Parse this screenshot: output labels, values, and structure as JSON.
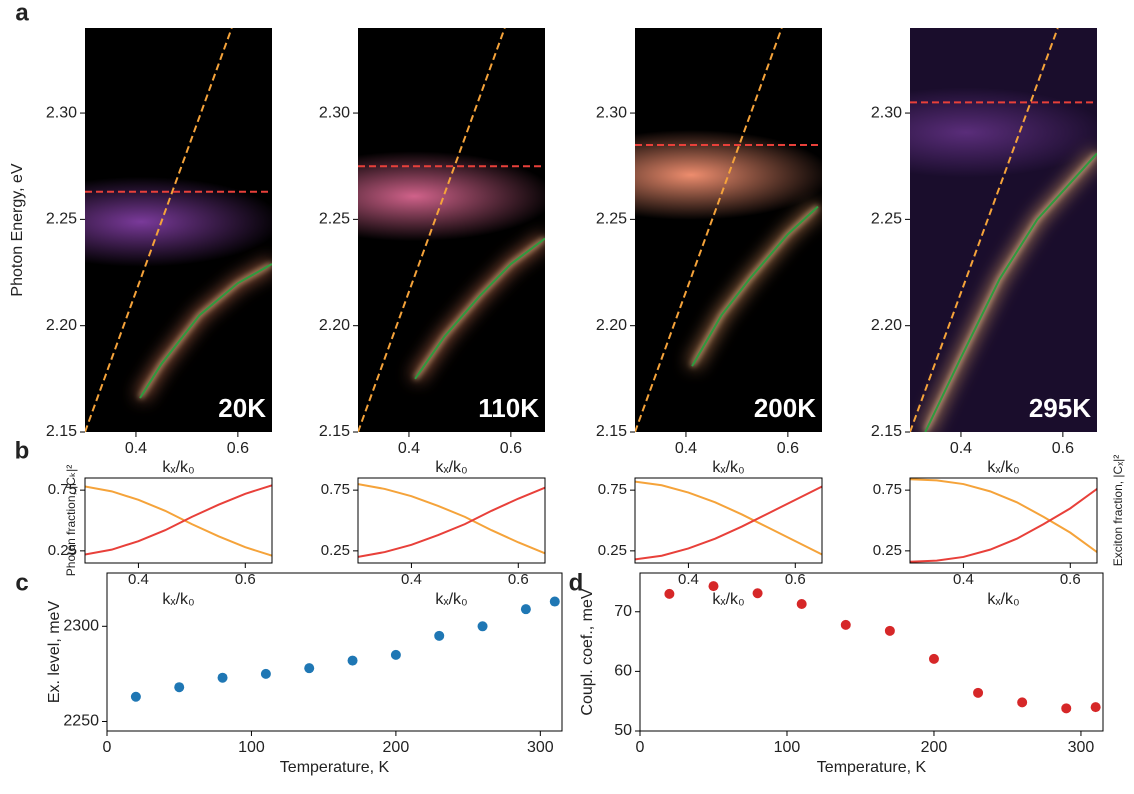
{
  "chart_data": [
    {
      "panel": "a",
      "type": "line",
      "ylabel": "Photon Energy, eV",
      "xlabel": "kₓ/k₀",
      "annotation": "20K",
      "xlim": [
        0.3,
        0.667
      ],
      "ylim": [
        2.15,
        2.34
      ],
      "xticks": [
        0.4,
        0.6
      ],
      "yticks": [
        2.15,
        {
          "value": 2.2,
          "label": "2.20"
        },
        2.25,
        {
          "value": 2.3,
          "label": "2.30"
        }
      ],
      "series": [
        {
          "color": "#f5a33a",
          "dashed": true,
          "x": [
            0.3,
            0.588
          ],
          "values": [
            2.15,
            2.34
          ]
        },
        {
          "color": "#e8403a",
          "dashed": true,
          "x": [
            0.3,
            0.667
          ],
          "values": [
            2.263,
            2.263
          ]
        },
        {
          "color": "#2e9b3e",
          "x": [
            0.408,
            0.45,
            0.525,
            0.6,
            0.667
          ],
          "values": [
            2.166,
            2.182,
            2.205,
            2.22,
            2.229
          ]
        }
      ]
    },
    {
      "type": "line",
      "xlabel": "kₓ/k₀",
      "annotation": "110K",
      "xlim": [
        0.3,
        0.667
      ],
      "ylim": [
        2.15,
        2.34
      ],
      "xticks": [
        0.4,
        0.6
      ],
      "yticks": [
        2.15,
        {
          "value": 2.2,
          "label": "2.20"
        },
        2.25,
        {
          "value": 2.3,
          "label": "2.30"
        }
      ],
      "series": [
        {
          "color": "#f5a33a",
          "dashed": true,
          "x": [
            0.3,
            0.588
          ],
          "values": [
            2.15,
            2.34
          ]
        },
        {
          "color": "#e8403a",
          "dashed": true,
          "x": [
            0.3,
            0.667
          ],
          "values": [
            2.275,
            2.275
          ]
        },
        {
          "color": "#2e9b3e",
          "x": [
            0.412,
            0.47,
            0.539,
            0.6,
            0.667
          ],
          "values": [
            2.175,
            2.195,
            2.214,
            2.229,
            2.241
          ]
        }
      ]
    },
    {
      "type": "line",
      "xlabel": "kₓ/k₀",
      "annotation": "200K",
      "xlim": [
        0.3,
        0.667
      ],
      "ylim": [
        2.15,
        2.34
      ],
      "xticks": [
        0.4,
        0.6
      ],
      "yticks": [
        2.15,
        {
          "value": 2.2,
          "label": "2.20"
        },
        2.25,
        {
          "value": 2.3,
          "label": "2.30"
        }
      ],
      "series": [
        {
          "color": "#f5a33a",
          "dashed": true,
          "x": [
            0.3,
            0.588
          ],
          "values": [
            2.15,
            2.34
          ]
        },
        {
          "color": "#e8403a",
          "dashed": true,
          "x": [
            0.3,
            0.667
          ],
          "values": [
            2.285,
            2.285
          ]
        },
        {
          "color": "#2e9b3e",
          "x": [
            0.412,
            0.47,
            0.525,
            0.6,
            0.659
          ],
          "values": [
            2.181,
            2.205,
            2.222,
            2.243,
            2.256
          ]
        }
      ]
    },
    {
      "type": "line",
      "xlabel": "kₓ/k₀",
      "annotation": "295K",
      "xlim": [
        0.3,
        0.667
      ],
      "ylim": [
        2.15,
        2.34
      ],
      "xticks": [
        0.4,
        0.6
      ],
      "yticks": [
        2.15,
        {
          "value": 2.2,
          "label": "2.20"
        },
        2.25,
        {
          "value": 2.3,
          "label": "2.30"
        }
      ],
      "series": [
        {
          "color": "#f5a33a",
          "dashed": true,
          "x": [
            0.3,
            0.59
          ],
          "values": [
            2.15,
            2.34
          ]
        },
        {
          "color": "#e8403a",
          "dashed": true,
          "x": [
            0.3,
            0.667
          ],
          "values": [
            2.305,
            2.305
          ]
        },
        {
          "color": "#2e9b3e",
          "x": [
            0.33,
            0.4,
            0.476,
            0.55,
            0.667
          ],
          "values": [
            2.15,
            2.185,
            2.222,
            2.25,
            2.281
          ]
        }
      ]
    },
    {
      "panel": "b",
      "type": "line",
      "xlabel": "kₓ/k₀",
      "ylabel": "Photon fraction, |Cₖ|²",
      "xlim": [
        0.3,
        0.65
      ],
      "ylim": [
        0.15,
        0.85
      ],
      "xticks": [
        0.4,
        0.6
      ],
      "yticks": [
        0.25,
        0.75
      ],
      "series": [
        {
          "color": "#f5a33a",
          "x": [
            0.3,
            0.35,
            0.4,
            0.45,
            0.5,
            0.55,
            0.6,
            0.65
          ],
          "values": [
            0.78,
            0.74,
            0.67,
            0.58,
            0.47,
            0.37,
            0.28,
            0.21
          ]
        },
        {
          "color": "#e8403a",
          "x": [
            0.3,
            0.35,
            0.4,
            0.45,
            0.5,
            0.55,
            0.6,
            0.65
          ],
          "values": [
            0.22,
            0.26,
            0.33,
            0.42,
            0.53,
            0.63,
            0.72,
            0.79
          ]
        }
      ]
    },
    {
      "type": "line",
      "xlabel": "kₓ/k₀",
      "xlim": [
        0.3,
        0.65
      ],
      "ylim": [
        0.15,
        0.85
      ],
      "xticks": [
        0.4,
        0.6
      ],
      "yticks": [
        0.25,
        0.75
      ],
      "series": [
        {
          "color": "#f5a33a",
          "x": [
            0.3,
            0.35,
            0.4,
            0.45,
            0.5,
            0.55,
            0.6,
            0.65
          ],
          "values": [
            0.8,
            0.76,
            0.7,
            0.62,
            0.53,
            0.42,
            0.32,
            0.23
          ]
        },
        {
          "color": "#e8403a",
          "x": [
            0.3,
            0.35,
            0.4,
            0.45,
            0.5,
            0.55,
            0.6,
            0.65
          ],
          "values": [
            0.2,
            0.24,
            0.3,
            0.38,
            0.47,
            0.58,
            0.68,
            0.77
          ]
        }
      ]
    },
    {
      "type": "line",
      "xlabel": "kₓ/k₀",
      "xlim": [
        0.3,
        0.65
      ],
      "ylim": [
        0.15,
        0.85
      ],
      "xticks": [
        0.4,
        0.6
      ],
      "yticks": [
        0.25,
        0.75
      ],
      "series": [
        {
          "color": "#f5a33a",
          "x": [
            0.3,
            0.35,
            0.4,
            0.45,
            0.5,
            0.55,
            0.6,
            0.65
          ],
          "values": [
            0.82,
            0.79,
            0.73,
            0.65,
            0.55,
            0.44,
            0.33,
            0.22
          ]
        },
        {
          "color": "#e8403a",
          "x": [
            0.3,
            0.35,
            0.4,
            0.45,
            0.5,
            0.55,
            0.6,
            0.65
          ],
          "values": [
            0.18,
            0.21,
            0.27,
            0.35,
            0.45,
            0.56,
            0.67,
            0.78
          ]
        }
      ]
    },
    {
      "type": "line",
      "xlabel": "kₓ/k₀",
      "y2label": "Exciton fraction, |Cₓ|²",
      "xlim": [
        0.3,
        0.65
      ],
      "ylim": [
        0.15,
        0.85
      ],
      "xticks": [
        0.4,
        0.6
      ],
      "yticks": [
        0.25,
        0.75
      ],
      "series": [
        {
          "color": "#f5a33a",
          "x": [
            0.3,
            0.35,
            0.4,
            0.45,
            0.5,
            0.55,
            0.6,
            0.65
          ],
          "values": [
            0.84,
            0.83,
            0.8,
            0.74,
            0.65,
            0.53,
            0.4,
            0.24
          ]
        },
        {
          "color": "#e8403a",
          "x": [
            0.3,
            0.35,
            0.4,
            0.45,
            0.5,
            0.55,
            0.6,
            0.65
          ],
          "values": [
            0.16,
            0.17,
            0.2,
            0.26,
            0.35,
            0.47,
            0.6,
            0.76
          ]
        }
      ]
    },
    {
      "panel": "c",
      "type": "scatter",
      "xlabel": "Temperature, K",
      "ylabel": "Ex. level, meV",
      "color": "#1f77b4",
      "xlim": [
        0,
        315
      ],
      "ylim": [
        2245,
        2328
      ],
      "xticks": [
        0,
        100,
        200,
        300
      ],
      "yticks": [
        2250,
        2300
      ],
      "x": [
        20,
        50,
        80,
        110,
        140,
        170,
        200,
        230,
        260,
        290,
        310
      ],
      "values": [
        2263,
        2268,
        2273,
        2275,
        2278,
        2282,
        2285,
        2295,
        2300,
        2309,
        2313
      ]
    },
    {
      "panel": "d",
      "type": "scatter",
      "xlabel": "Temperature, K",
      "ylabel": "Coupl. coef., meV",
      "color": "#d62728",
      "xlim": [
        0,
        315
      ],
      "ylim": [
        50,
        76.5
      ],
      "xticks": [
        0,
        100,
        200,
        300
      ],
      "yticks": [
        50,
        60,
        70
      ],
      "x": [
        20,
        50,
        80,
        110,
        140,
        170,
        200,
        230,
        260,
        290,
        310
      ],
      "values": [
        73,
        74.3,
        73.1,
        71.3,
        67.8,
        66.8,
        62.1,
        56.4,
        54.8,
        53.8,
        54
      ]
    }
  ]
}
